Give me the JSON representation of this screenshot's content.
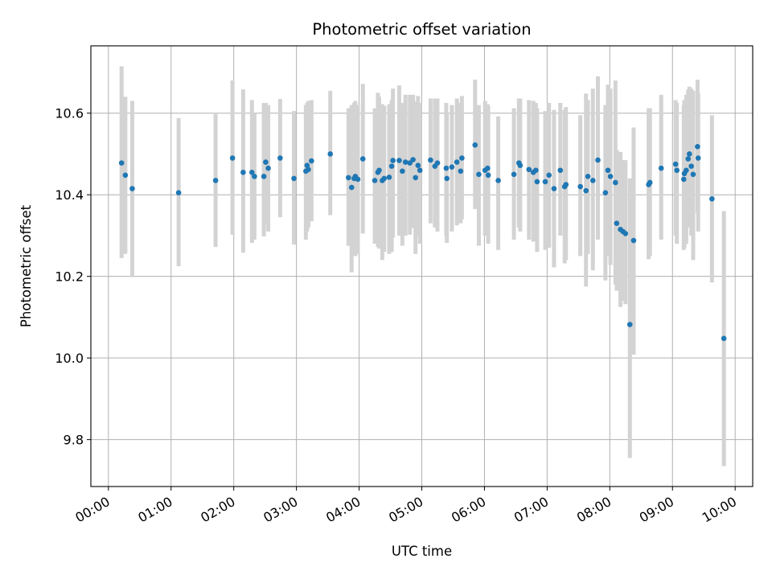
{
  "chart_data": {
    "type": "scatter",
    "title": "Photometric offset variation",
    "xlabel": "UTC time",
    "ylabel": "Photometric offset",
    "xlim": [
      -0.28,
      10.28
    ],
    "ylim": [
      9.685,
      10.765
    ],
    "grid": true,
    "x_ticks": [
      0,
      1,
      2,
      3,
      4,
      5,
      6,
      7,
      8,
      9,
      10
    ],
    "x_tick_labels": [
      "00:00",
      "01:00",
      "02:00",
      "03:00",
      "04:00",
      "05:00",
      "06:00",
      "07:00",
      "08:00",
      "09:00",
      "10:00"
    ],
    "y_ticks": [
      9.8,
      10.0,
      10.2,
      10.4,
      10.6
    ],
    "y_tick_labels": [
      "9.8",
      "10.0",
      "10.2",
      "10.4",
      "10.6"
    ],
    "marker_color": "#1f77b4",
    "errorbar_color": "#d3d3d3",
    "points": [
      [
        0.21,
        10.478,
        10.245,
        10.715
      ],
      [
        0.27,
        10.448,
        10.255,
        10.64
      ],
      [
        0.38,
        10.415,
        10.198,
        10.63
      ],
      [
        1.12,
        10.405,
        10.225,
        10.588
      ],
      [
        1.71,
        10.435,
        10.272,
        10.598
      ],
      [
        1.98,
        10.49,
        10.302,
        10.68
      ],
      [
        2.15,
        10.455,
        10.258,
        10.658
      ],
      [
        2.29,
        10.455,
        10.282,
        10.632
      ],
      [
        2.33,
        10.445,
        10.29,
        10.6
      ],
      [
        2.48,
        10.445,
        10.298,
        10.625
      ],
      [
        2.51,
        10.48,
        10.33,
        10.625
      ],
      [
        2.55,
        10.465,
        10.31,
        10.62
      ],
      [
        2.74,
        10.49,
        10.345,
        10.635
      ],
      [
        2.96,
        10.44,
        10.278,
        10.605
      ],
      [
        3.15,
        10.458,
        10.29,
        10.62
      ],
      [
        3.17,
        10.472,
        10.31,
        10.625
      ],
      [
        3.19,
        10.462,
        10.32,
        10.63
      ],
      [
        3.24,
        10.483,
        10.335,
        10.632
      ],
      [
        3.54,
        10.5,
        10.35,
        10.655
      ],
      [
        3.83,
        10.442,
        10.275,
        10.612
      ],
      [
        3.88,
        10.418,
        10.21,
        10.62
      ],
      [
        3.92,
        10.44,
        10.268,
        10.625
      ],
      [
        3.94,
        10.445,
        10.25,
        10.63
      ],
      [
        3.98,
        10.438,
        10.255,
        10.62
      ],
      [
        4.06,
        10.488,
        10.305,
        10.672
      ],
      [
        4.25,
        10.435,
        10.28,
        10.612
      ],
      [
        4.3,
        10.455,
        10.272,
        10.65
      ],
      [
        4.32,
        10.46,
        10.268,
        10.64
      ],
      [
        4.37,
        10.435,
        10.24,
        10.622
      ],
      [
        4.4,
        10.44,
        10.26,
        10.618
      ],
      [
        4.48,
        10.443,
        10.255,
        10.622
      ],
      [
        4.52,
        10.47,
        10.26,
        10.632
      ],
      [
        4.54,
        10.484,
        10.295,
        10.66
      ],
      [
        4.64,
        10.484,
        10.3,
        10.668
      ],
      [
        4.69,
        10.458,
        10.275,
        10.625
      ],
      [
        4.74,
        10.48,
        10.3,
        10.645
      ],
      [
        4.81,
        10.478,
        10.302,
        10.645
      ],
      [
        4.86,
        10.486,
        10.318,
        10.645
      ],
      [
        4.9,
        10.442,
        10.255,
        10.628
      ],
      [
        4.94,
        10.472,
        10.3,
        10.642
      ],
      [
        4.97,
        10.46,
        10.28,
        10.625
      ],
      [
        5.14,
        10.485,
        10.33,
        10.636
      ],
      [
        5.21,
        10.47,
        10.32,
        10.636
      ],
      [
        5.25,
        10.478,
        10.31,
        10.636
      ],
      [
        5.39,
        10.465,
        10.3,
        10.625
      ],
      [
        5.4,
        10.44,
        10.282,
        10.6
      ],
      [
        5.48,
        10.468,
        10.31,
        10.62
      ],
      [
        5.56,
        10.48,
        10.325,
        10.636
      ],
      [
        5.62,
        10.458,
        10.33,
        10.625
      ],
      [
        5.64,
        10.49,
        10.34,
        10.642
      ],
      [
        5.85,
        10.522,
        10.365,
        10.682
      ],
      [
        5.91,
        10.45,
        10.275,
        10.62
      ],
      [
        6.01,
        10.46,
        10.3,
        10.63
      ],
      [
        6.05,
        10.465,
        10.305,
        10.622
      ],
      [
        6.06,
        10.448,
        10.28,
        10.618
      ],
      [
        6.22,
        10.435,
        10.265,
        10.592
      ],
      [
        6.47,
        10.45,
        10.29,
        10.612
      ],
      [
        6.55,
        10.478,
        10.32,
        10.636
      ],
      [
        6.57,
        10.472,
        10.31,
        10.636
      ],
      [
        6.71,
        10.462,
        10.29,
        10.632
      ],
      [
        6.78,
        10.455,
        10.285,
        10.63
      ],
      [
        6.82,
        10.46,
        10.3,
        10.625
      ],
      [
        6.84,
        10.432,
        10.26,
        10.612
      ],
      [
        6.97,
        10.432,
        10.265,
        10.605
      ],
      [
        7.03,
        10.448,
        10.27,
        10.625
      ],
      [
        7.11,
        10.415,
        10.222,
        10.608
      ],
      [
        7.21,
        10.46,
        10.3,
        10.625
      ],
      [
        7.28,
        10.42,
        10.232,
        10.608
      ],
      [
        7.3,
        10.425,
        10.24,
        10.615
      ],
      [
        7.53,
        10.42,
        10.25,
        10.595
      ],
      [
        7.62,
        10.41,
        10.175,
        10.648
      ],
      [
        7.65,
        10.445,
        10.255,
        10.632
      ],
      [
        7.73,
        10.435,
        10.215,
        10.66
      ],
      [
        7.81,
        10.485,
        10.29,
        10.69
      ],
      [
        7.93,
        10.405,
        10.19,
        10.62
      ],
      [
        7.97,
        10.46,
        10.25,
        10.67
      ],
      [
        8.01,
        10.445,
        10.228,
        10.66
      ],
      [
        8.09,
        10.43,
        10.18,
        10.68
      ],
      [
        8.11,
        10.33,
        10.165,
        10.51
      ],
      [
        8.17,
        10.315,
        10.125,
        10.505
      ],
      [
        8.21,
        10.31,
        10.14,
        10.485
      ],
      [
        8.25,
        10.305,
        10.132,
        10.485
      ],
      [
        8.32,
        10.082,
        9.755,
        10.44
      ],
      [
        8.38,
        10.288,
        10.008,
        10.565
      ],
      [
        8.62,
        10.425,
        10.242,
        10.612
      ],
      [
        8.64,
        10.43,
        10.25,
        10.612
      ],
      [
        8.82,
        10.465,
        10.29,
        10.645
      ],
      [
        9.05,
        10.475,
        10.3,
        10.632
      ],
      [
        9.07,
        10.46,
        10.28,
        10.625
      ],
      [
        9.18,
        10.438,
        10.265,
        10.62
      ],
      [
        9.19,
        10.452,
        10.27,
        10.632
      ],
      [
        9.22,
        10.46,
        10.28,
        10.645
      ],
      [
        9.25,
        10.488,
        10.32,
        10.658
      ],
      [
        9.27,
        10.5,
        10.33,
        10.665
      ],
      [
        9.3,
        10.47,
        10.3,
        10.66
      ],
      [
        9.33,
        10.45,
        10.24,
        10.655
      ],
      [
        9.4,
        10.518,
        10.355,
        10.682
      ],
      [
        9.41,
        10.49,
        10.31,
        10.65
      ],
      [
        9.63,
        10.39,
        10.185,
        10.595
      ],
      [
        9.82,
        10.048,
        9.735,
        10.36
      ]
    ]
  }
}
